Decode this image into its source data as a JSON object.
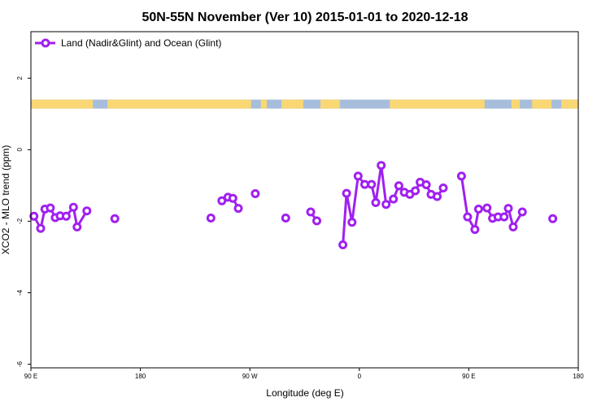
{
  "chart_data": {
    "type": "line",
    "title": "50N-55N November (Ver 10)   2015-01-01 to 2020-12-18",
    "xlabel": "Longitude (deg E)",
    "ylabel": "XCO2 - MLO trend (ppm)",
    "xlim": [
      90,
      540
    ],
    "ylim": [
      -6.1,
      3.3
    ],
    "x_ticks": [
      {
        "value": 90,
        "label": "90 E"
      },
      {
        "value": 180,
        "label": "180"
      },
      {
        "value": 270,
        "label": "90 W"
      },
      {
        "value": 360,
        "label": "0"
      },
      {
        "value": 450,
        "label": "90 E"
      },
      {
        "value": 540,
        "label": "180"
      }
    ],
    "y_ticks": [
      {
        "value": 2,
        "label": "2"
      },
      {
        "value": 0,
        "label": "0"
      },
      {
        "value": -2,
        "label": "-2"
      },
      {
        "value": -4,
        "label": "-4"
      },
      {
        "value": -6,
        "label": "-6"
      }
    ],
    "legend": {
      "position": "top-left"
    },
    "land_ocean_band": {
      "y_range": [
        1.15,
        1.4
      ],
      "ocean_color": "#a6bddb",
      "land_color": "#f8d774",
      "land_segments": [
        [
          90,
          141
        ],
        [
          153,
          271
        ],
        [
          279,
          284
        ],
        [
          296,
          314
        ],
        [
          328,
          344
        ],
        [
          385,
          463
        ],
        [
          485,
          492
        ],
        [
          502,
          518
        ],
        [
          526,
          540
        ]
      ]
    },
    "series": [
      {
        "name": "Land (Nadir&Glint) and Ocean (Glint)",
        "color": "#a020f0",
        "segments": [
          [
            [
              92.5,
              -1.86
            ],
            [
              98,
              -2.2
            ],
            [
              101.5,
              -1.66
            ],
            [
              106,
              -1.63
            ],
            [
              110,
              -1.9
            ],
            [
              114,
              -1.85
            ],
            [
              119,
              -1.86
            ],
            [
              125,
              -1.61
            ],
            [
              128,
              -2.16
            ],
            [
              136,
              -1.71
            ]
          ],
          [
            [
              159,
              -1.93
            ]
          ],
          [
            [
              238,
              -1.91
            ]
          ],
          [
            [
              247,
              -1.43
            ],
            [
              252,
              -1.33
            ],
            [
              256,
              -1.36
            ],
            [
              260.5,
              -1.64
            ]
          ],
          [
            [
              274.5,
              -1.23
            ]
          ],
          [
            [
              299.5,
              -1.91
            ]
          ],
          [
            [
              320,
              -1.74
            ],
            [
              325,
              -1.99
            ]
          ],
          [
            [
              346.5,
              -2.66
            ],
            [
              349.5,
              -1.22
            ],
            [
              354,
              -2.03
            ],
            [
              359,
              -0.74
            ],
            [
              364.5,
              -0.97
            ],
            [
              370,
              -0.97
            ],
            [
              373.5,
              -1.48
            ],
            [
              378,
              -0.44
            ],
            [
              382,
              -1.53
            ],
            [
              388,
              -1.38
            ],
            [
              392.5,
              -1.01
            ],
            [
              397,
              -1.19
            ],
            [
              401.5,
              -1.25
            ],
            [
              406,
              -1.15
            ],
            [
              410,
              -0.91
            ],
            [
              415,
              -0.98
            ],
            [
              419,
              -1.25
            ],
            [
              424,
              -1.31
            ],
            [
              429,
              -1.07
            ]
          ],
          [
            [
              444,
              -0.74
            ],
            [
              449,
              -1.88
            ],
            [
              455,
              -2.23
            ],
            [
              458,
              -1.66
            ],
            [
              465,
              -1.63
            ],
            [
              469.5,
              -1.92
            ],
            [
              474,
              -1.88
            ],
            [
              479,
              -1.88
            ],
            [
              482.5,
              -1.64
            ],
            [
              486.5,
              -2.16
            ],
            [
              494,
              -1.74
            ]
          ],
          [
            [
              519,
              -1.93
            ]
          ]
        ]
      }
    ]
  }
}
